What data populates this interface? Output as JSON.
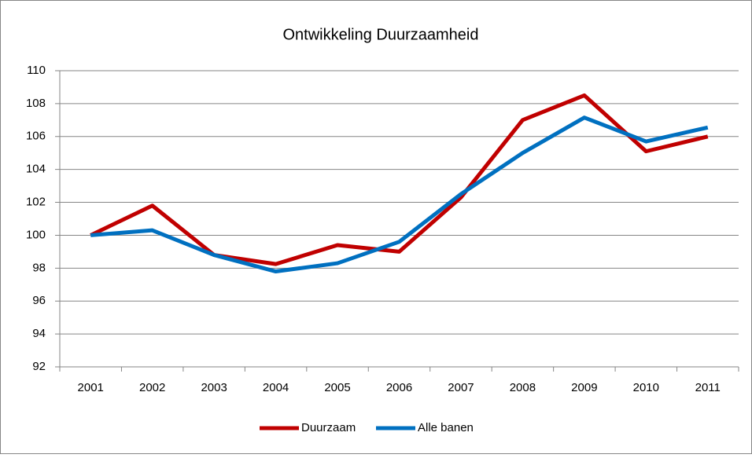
{
  "chart_data": {
    "type": "line",
    "title": "Ontwikkeling Duurzaamheid",
    "categories": [
      "2001",
      "2002",
      "2003",
      "2004",
      "2005",
      "2006",
      "2007",
      "2008",
      "2009",
      "2010",
      "2011"
    ],
    "series": [
      {
        "name": "Duurzaam",
        "color": "#c00000",
        "values": [
          100,
          101.8,
          98.8,
          98.25,
          99.4,
          99.0,
          102.3,
          107.0,
          108.5,
          105.1,
          106.0
        ]
      },
      {
        "name": "Alle banen",
        "color": "#0070c0",
        "values": [
          100,
          100.3,
          98.8,
          97.8,
          98.3,
          99.6,
          102.5,
          105.0,
          107.15,
          105.7,
          106.55
        ]
      }
    ],
    "ylim": [
      92,
      110
    ],
    "yticks": [
      92,
      94,
      96,
      98,
      100,
      102,
      104,
      106,
      108,
      110
    ],
    "grid": true,
    "legend": "bottom"
  }
}
